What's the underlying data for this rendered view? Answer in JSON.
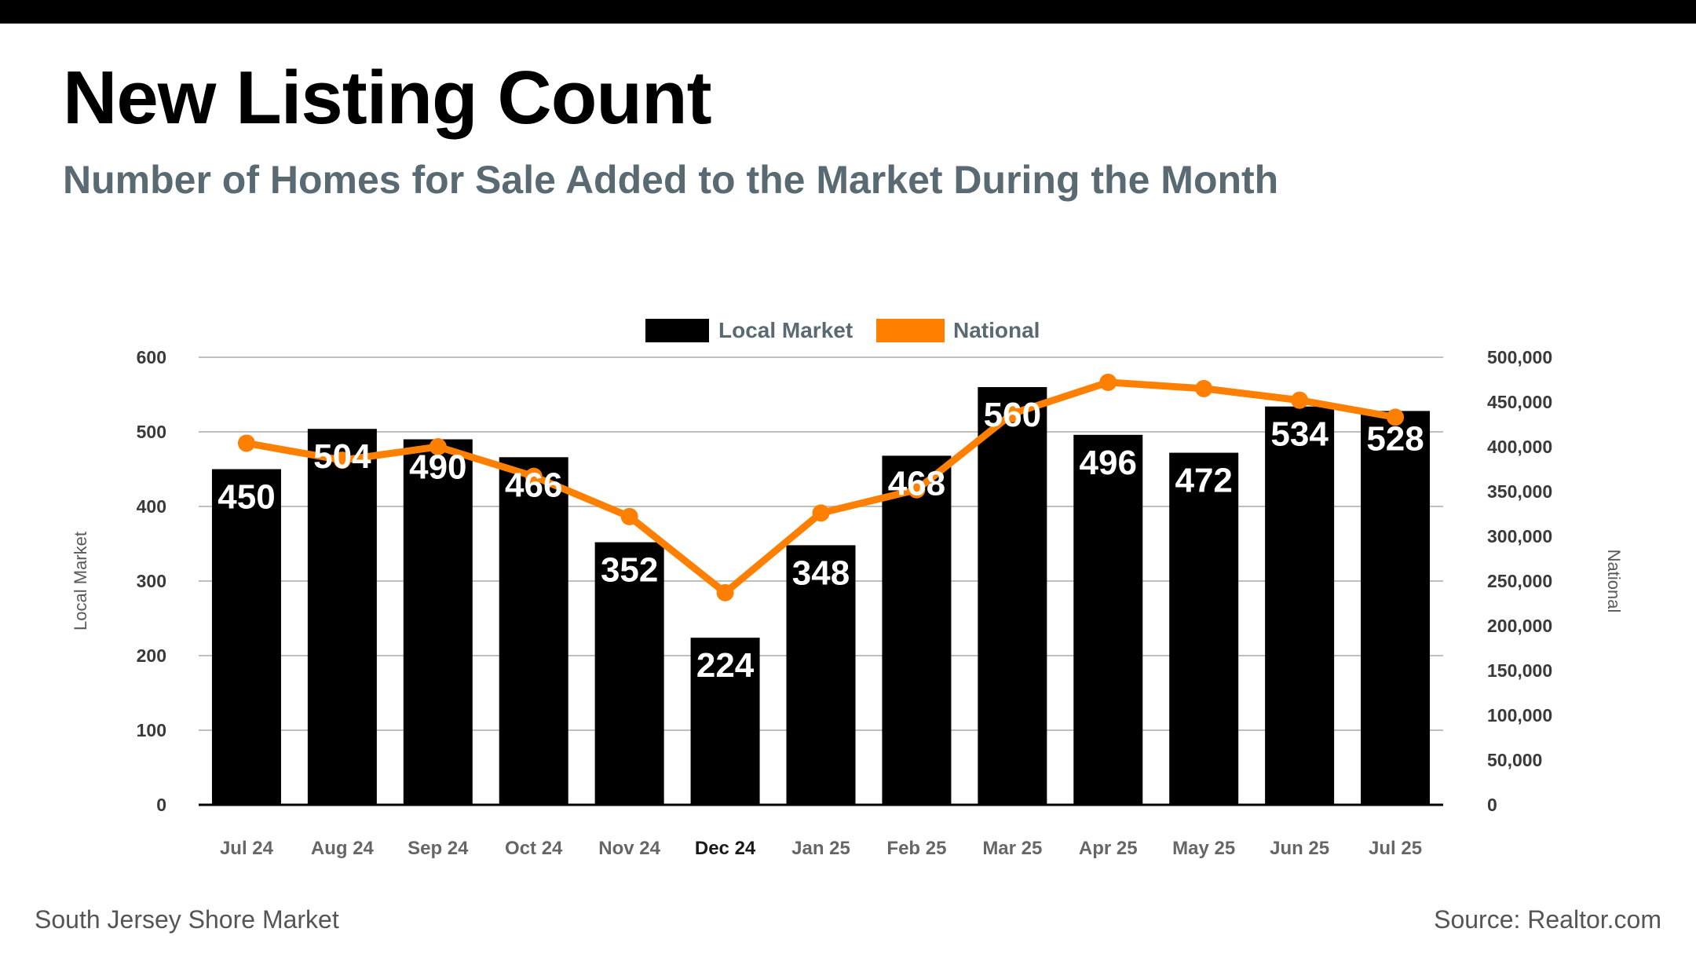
{
  "header": {
    "title": "New Listing Count",
    "subtitle": "Number of Homes for Sale Added to the Market During the Month"
  },
  "footer": {
    "left": "South Jersey Shore Market",
    "right": "Source: Realtor.com"
  },
  "colors": {
    "bar": "#000000",
    "line": "#ff8000",
    "subtitle": "#5a6a73",
    "legend_text": "#5a6a73",
    "grid": "#bfbfbf",
    "axis_text": "#5a5a5a"
  },
  "chart_data": {
    "type": "bar",
    "title": "New Listing Count",
    "subtitle": "Number of Homes for Sale Added to the Market During the Month",
    "categories": [
      "Jul 24",
      "Aug 24",
      "Sep 24",
      "Oct 24",
      "Nov 24",
      "Dec 24",
      "Jan 25",
      "Feb 25",
      "Mar 25",
      "Apr 25",
      "May 25",
      "Jun 25",
      "Jul 25"
    ],
    "highlight_category": "Dec 24",
    "series": [
      {
        "name": "Local Market",
        "type": "bar",
        "axis": "left",
        "values": [
          450,
          504,
          490,
          466,
          352,
          224,
          348,
          468,
          560,
          496,
          472,
          534,
          528
        ],
        "data_labels": [
          "450",
          "504",
          "490",
          "466",
          "352",
          "224",
          "348",
          "468",
          "560",
          "496",
          "472",
          "534",
          "528"
        ]
      },
      {
        "name": "National",
        "type": "line",
        "axis": "right",
        "values": [
          404000,
          385000,
          400000,
          367000,
          322000,
          237000,
          326000,
          352000,
          437000,
          472000,
          465000,
          452000,
          433000
        ]
      }
    ],
    "ylabel": "Local Market",
    "y2label": "National",
    "ylim": [
      0,
      600
    ],
    "y2lim": [
      0,
      500000
    ],
    "yticks": [
      "0",
      "100",
      "200",
      "300",
      "400",
      "500",
      "600"
    ],
    "y2ticks": [
      "0",
      "50,000",
      "100,000",
      "150,000",
      "200,000",
      "250,000",
      "300,000",
      "350,000",
      "400,000",
      "450,000",
      "500,000"
    ],
    "legend": [
      "Local Market",
      "National"
    ],
    "legend_position": "top-center",
    "grid": true
  }
}
